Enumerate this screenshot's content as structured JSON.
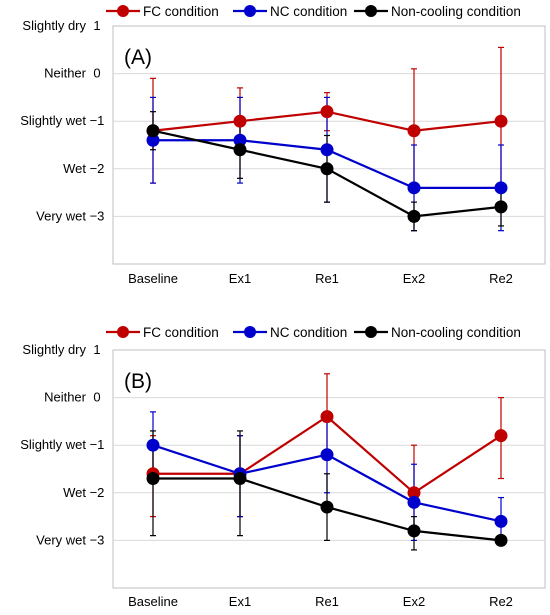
{
  "chart_data": [
    {
      "type": "line",
      "panel_label": "(A)",
      "categories": [
        "Baseline",
        "Ex1",
        "Re1",
        "Ex2",
        "Re2"
      ],
      "ylim": [
        -4,
        1
      ],
      "yticks": [
        {
          "value": 1,
          "text": "Slightly dry",
          "num": "1"
        },
        {
          "value": 0,
          "text": "Neither",
          "num": "0"
        },
        {
          "value": -1,
          "text": "Slightly wet",
          "num": "−1"
        },
        {
          "value": -2,
          "text": "Wet",
          "num": "−2"
        },
        {
          "value": -3,
          "text": "Very wet",
          "num": "−3"
        }
      ],
      "grid": true,
      "legend_position": "top",
      "series": [
        {
          "name": "FC condition",
          "color": "#c00000",
          "values": [
            -1.2,
            -1.0,
            -0.8,
            -1.2,
            -1.0
          ],
          "err_upper": [
            -0.1,
            -0.3,
            -0.4,
            0.1,
            0.55
          ],
          "err_lower": [
            -2.3,
            -1.7,
            -1.2,
            -2.5,
            -2.5
          ]
        },
        {
          "name": "NC condition",
          "color": "#0000cc",
          "values": [
            -1.4,
            -1.4,
            -1.6,
            -2.4,
            -2.4
          ],
          "err_upper": [
            -0.5,
            -0.5,
            -0.5,
            -1.5,
            -1.5
          ],
          "err_lower": [
            -2.3,
            -2.3,
            -2.7,
            -3.3,
            -3.3
          ]
        },
        {
          "name": "Non-cooling condition",
          "color": "#000000",
          "values": [
            -1.2,
            -1.6,
            -2.0,
            -3.0,
            -2.8
          ],
          "err_upper": [
            -0.8,
            -1.0,
            -1.3,
            -2.7,
            -2.5
          ],
          "err_lower": [
            -1.6,
            -2.2,
            -2.7,
            -3.3,
            -3.2
          ]
        }
      ]
    },
    {
      "type": "line",
      "panel_label": "(B)",
      "categories": [
        "Baseline",
        "Ex1",
        "Re1",
        "Ex2",
        "Re2"
      ],
      "ylim": [
        -4,
        1
      ],
      "yticks": [
        {
          "value": 1,
          "text": "Slightly dry",
          "num": "1"
        },
        {
          "value": 0,
          "text": "Neither",
          "num": "0"
        },
        {
          "value": -1,
          "text": "Slightly  wet",
          "num": "−1"
        },
        {
          "value": -2,
          "text": "Wet",
          "num": "−2"
        },
        {
          "value": -3,
          "text": "Very wet",
          "num": "−3"
        }
      ],
      "grid": true,
      "legend_position": "top",
      "series": [
        {
          "name": "FC condition",
          "color": "#c00000",
          "values": [
            -1.6,
            -1.6,
            -0.4,
            -2.0,
            -0.8
          ],
          "err_upper": [
            -0.8,
            -0.8,
            0.5,
            -1.0,
            0.0
          ],
          "err_lower": [
            -2.5,
            -2.5,
            -1.3,
            -2.9,
            -1.7
          ]
        },
        {
          "name": "NC condition",
          "color": "#0000cc",
          "values": [
            -1.0,
            -1.6,
            -1.2,
            -2.2,
            -2.6
          ],
          "err_upper": [
            -0.3,
            -0.8,
            -0.4,
            -1.4,
            -2.1
          ],
          "err_lower": [
            -1.8,
            -2.5,
            -2.0,
            -3.0,
            -3.1
          ]
        },
        {
          "name": "Non-cooling condition",
          "color": "#000000",
          "values": [
            -1.7,
            -1.7,
            -2.3,
            -2.8,
            -3.0
          ],
          "err_upper": [
            -0.7,
            -0.7,
            -1.6,
            -2.5,
            -2.9
          ],
          "err_lower": [
            -2.9,
            -2.9,
            -3.0,
            -3.2,
            -3.1
          ]
        }
      ]
    }
  ]
}
